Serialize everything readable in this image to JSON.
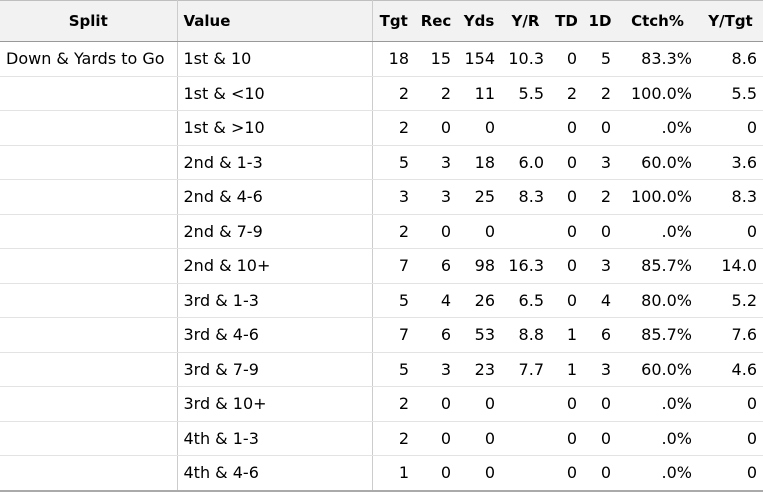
{
  "headers": {
    "split": "Split",
    "value": "Value",
    "tgt": "Tgt",
    "rec": "Rec",
    "yds": "Yds",
    "yr": "Y/R",
    "td": "TD",
    "fd": "1D",
    "ctch": "Ctch%",
    "ytgt": "Y/Tgt"
  },
  "rows": [
    {
      "split": "Down & Yards to Go",
      "value": "1st & 10",
      "tgt": "18",
      "rec": "15",
      "yds": "154",
      "yr": "10.3",
      "td": "0",
      "fd": "5",
      "ctch": "83.3%",
      "ytgt": "8.6"
    },
    {
      "split": "",
      "value": "1st & <10",
      "tgt": "2",
      "rec": "2",
      "yds": "11",
      "yr": "5.5",
      "td": "2",
      "fd": "2",
      "ctch": "100.0%",
      "ytgt": "5.5"
    },
    {
      "split": "",
      "value": "1st & >10",
      "tgt": "2",
      "rec": "0",
      "yds": "0",
      "yr": "",
      "td": "0",
      "fd": "0",
      "ctch": ".0%",
      "ytgt": "0"
    },
    {
      "split": "",
      "value": "2nd & 1-3",
      "tgt": "5",
      "rec": "3",
      "yds": "18",
      "yr": "6.0",
      "td": "0",
      "fd": "3",
      "ctch": "60.0%",
      "ytgt": "3.6"
    },
    {
      "split": "",
      "value": "2nd & 4-6",
      "tgt": "3",
      "rec": "3",
      "yds": "25",
      "yr": "8.3",
      "td": "0",
      "fd": "2",
      "ctch": "100.0%",
      "ytgt": "8.3"
    },
    {
      "split": "",
      "value": "2nd & 7-9",
      "tgt": "2",
      "rec": "0",
      "yds": "0",
      "yr": "",
      "td": "0",
      "fd": "0",
      "ctch": ".0%",
      "ytgt": "0"
    },
    {
      "split": "",
      "value": "2nd & 10+",
      "tgt": "7",
      "rec": "6",
      "yds": "98",
      "yr": "16.3",
      "td": "0",
      "fd": "3",
      "ctch": "85.7%",
      "ytgt": "14.0"
    },
    {
      "split": "",
      "value": "3rd & 1-3",
      "tgt": "5",
      "rec": "4",
      "yds": "26",
      "yr": "6.5",
      "td": "0",
      "fd": "4",
      "ctch": "80.0%",
      "ytgt": "5.2"
    },
    {
      "split": "",
      "value": "3rd & 4-6",
      "tgt": "7",
      "rec": "6",
      "yds": "53",
      "yr": "8.8",
      "td": "1",
      "fd": "6",
      "ctch": "85.7%",
      "ytgt": "7.6"
    },
    {
      "split": "",
      "value": "3rd & 7-9",
      "tgt": "5",
      "rec": "3",
      "yds": "23",
      "yr": "7.7",
      "td": "1",
      "fd": "3",
      "ctch": "60.0%",
      "ytgt": "4.6"
    },
    {
      "split": "",
      "value": "3rd & 10+",
      "tgt": "2",
      "rec": "0",
      "yds": "0",
      "yr": "",
      "td": "0",
      "fd": "0",
      "ctch": ".0%",
      "ytgt": "0"
    },
    {
      "split": "",
      "value": "4th & 1-3",
      "tgt": "2",
      "rec": "0",
      "yds": "0",
      "yr": "",
      "td": "0",
      "fd": "0",
      "ctch": ".0%",
      "ytgt": "0"
    },
    {
      "split": "",
      "value": "4th & 4-6",
      "tgt": "1",
      "rec": "0",
      "yds": "0",
      "yr": "",
      "td": "0",
      "fd": "0",
      "ctch": ".0%",
      "ytgt": "0"
    }
  ]
}
